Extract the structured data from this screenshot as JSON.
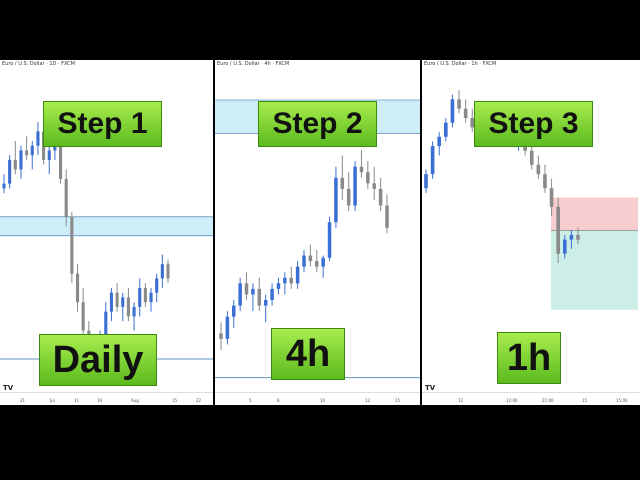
{
  "panels": [
    {
      "header": "Euro / U.S. Dollar · 1D · FXCM",
      "step": "Step 1",
      "timeframe": "Daily",
      "ticks": [
        "21",
        "Jul",
        "11",
        "19",
        "Aug",
        "15",
        "22"
      ],
      "logo": "TV"
    },
    {
      "header": "Euro / U.S. Dollar · 4h · FXCM",
      "step": "Step 2",
      "timeframe": "4h",
      "ticks": [
        "5",
        "8",
        "10",
        "12",
        "15"
      ],
      "logo": ""
    },
    {
      "header": "Euro / U.S. Dollar · 1h · FXCM",
      "step": "Step 3",
      "timeframe": "1h",
      "ticks": [
        "12",
        "12:00",
        "21:00",
        "15",
        "15:00"
      ],
      "logo": "TV"
    }
  ],
  "colors": {
    "bull": "#3b6fd4",
    "bear": "#8a8a8a",
    "zone_blue": "#cdeef8",
    "zone_line": "#2b6fa8",
    "stop_zone": "#f7cdd0",
    "target_zone": "#cdeee6",
    "badge_green": "#7ed63a"
  },
  "chart_data": [
    {
      "type": "candlestick",
      "title": "Euro / U.S. Dollar · 1D · FXCM",
      "x": [
        "21",
        "Jul",
        "11",
        "19",
        "Aug",
        "15",
        "22"
      ],
      "ohlc": [
        [
          1.2,
          1.215,
          1.195,
          1.205
        ],
        [
          1.205,
          1.235,
          1.2,
          1.23
        ],
        [
          1.23,
          1.25,
          1.215,
          1.22
        ],
        [
          1.22,
          1.245,
          1.21,
          1.24
        ],
        [
          1.24,
          1.255,
          1.23,
          1.235
        ],
        [
          1.235,
          1.25,
          1.22,
          1.245
        ],
        [
          1.245,
          1.27,
          1.235,
          1.26
        ],
        [
          1.26,
          1.265,
          1.225,
          1.23
        ],
        [
          1.23,
          1.245,
          1.215,
          1.24
        ],
        [
          1.24,
          1.26,
          1.23,
          1.25
        ],
        [
          1.25,
          1.255,
          1.205,
          1.21
        ],
        [
          1.21,
          1.22,
          1.16,
          1.17
        ],
        [
          1.17,
          1.175,
          1.1,
          1.11
        ],
        [
          1.11,
          1.12,
          1.07,
          1.08
        ],
        [
          1.08,
          1.095,
          1.04,
          1.05
        ],
        [
          1.05,
          1.06,
          1.01,
          1.02
        ],
        [
          1.02,
          1.035,
          1.0,
          1.025
        ],
        [
          1.025,
          1.05,
          1.015,
          1.045
        ],
        [
          1.045,
          1.08,
          1.035,
          1.07
        ],
        [
          1.07,
          1.095,
          1.06,
          1.09
        ],
        [
          1.09,
          1.1,
          1.07,
          1.075
        ],
        [
          1.075,
          1.09,
          1.06,
          1.085
        ],
        [
          1.085,
          1.095,
          1.06,
          1.065
        ],
        [
          1.065,
          1.08,
          1.05,
          1.075
        ],
        [
          1.075,
          1.105,
          1.065,
          1.095
        ],
        [
          1.095,
          1.1,
          1.075,
          1.08
        ],
        [
          1.08,
          1.095,
          1.07,
          1.09
        ],
        [
          1.09,
          1.11,
          1.08,
          1.105
        ],
        [
          1.105,
          1.13,
          1.095,
          1.12
        ],
        [
          1.12,
          1.125,
          1.1,
          1.105
        ]
      ],
      "zones": [
        [
          1.17,
          1.15
        ]
      ],
      "levels": [
        1.02
      ]
    },
    {
      "type": "candlestick",
      "title": "Euro / U.S. Dollar · 4h · FXCM",
      "x": [
        "5",
        "8",
        "10",
        "12",
        "15"
      ],
      "ohlc": [
        [
          1.01,
          1.02,
          0.995,
          1.005
        ],
        [
          1.005,
          1.03,
          1.0,
          1.025
        ],
        [
          1.025,
          1.04,
          1.015,
          1.035
        ],
        [
          1.035,
          1.06,
          1.03,
          1.055
        ],
        [
          1.055,
          1.065,
          1.04,
          1.045
        ],
        [
          1.045,
          1.055,
          1.03,
          1.05
        ],
        [
          1.05,
          1.06,
          1.03,
          1.035
        ],
        [
          1.035,
          1.045,
          1.02,
          1.04
        ],
        [
          1.04,
          1.055,
          1.035,
          1.05
        ],
        [
          1.05,
          1.06,
          1.045,
          1.055
        ],
        [
          1.055,
          1.065,
          1.045,
          1.06
        ],
        [
          1.06,
          1.07,
          1.05,
          1.055
        ],
        [
          1.055,
          1.075,
          1.05,
          1.07
        ],
        [
          1.07,
          1.085,
          1.065,
          1.08
        ],
        [
          1.08,
          1.09,
          1.07,
          1.075
        ],
        [
          1.075,
          1.085,
          1.065,
          1.07
        ],
        [
          1.07,
          1.08,
          1.06,
          1.078
        ],
        [
          1.078,
          1.115,
          1.075,
          1.11
        ],
        [
          1.11,
          1.16,
          1.105,
          1.15
        ],
        [
          1.15,
          1.17,
          1.13,
          1.14
        ],
        [
          1.14,
          1.155,
          1.12,
          1.125
        ],
        [
          1.125,
          1.165,
          1.12,
          1.16
        ],
        [
          1.16,
          1.175,
          1.15,
          1.155
        ],
        [
          1.155,
          1.165,
          1.14,
          1.145
        ],
        [
          1.145,
          1.16,
          1.13,
          1.14
        ],
        [
          1.14,
          1.15,
          1.12,
          1.125
        ],
        [
          1.125,
          1.135,
          1.1,
          1.105
        ]
      ],
      "zones": [
        [
          1.22,
          1.19
        ]
      ],
      "levels": [
        0.97
      ]
    },
    {
      "type": "candlestick",
      "title": "Euro / U.S. Dollar · 1h · FXCM",
      "x": [
        "12",
        "12:00",
        "21:00",
        "15",
        "15:00"
      ],
      "ohlc": [
        [
          1.09,
          1.11,
          1.085,
          1.105
        ],
        [
          1.105,
          1.14,
          1.1,
          1.135
        ],
        [
          1.135,
          1.15,
          1.125,
          1.145
        ],
        [
          1.145,
          1.165,
          1.14,
          1.16
        ],
        [
          1.16,
          1.19,
          1.155,
          1.185
        ],
        [
          1.185,
          1.195,
          1.17,
          1.175
        ],
        [
          1.175,
          1.185,
          1.16,
          1.165
        ],
        [
          1.165,
          1.175,
          1.15,
          1.155
        ],
        [
          1.155,
          1.165,
          1.14,
          1.15
        ],
        [
          1.15,
          1.16,
          1.14,
          1.155
        ],
        [
          1.155,
          1.162,
          1.145,
          1.15
        ],
        [
          1.15,
          1.158,
          1.14,
          1.145
        ],
        [
          1.145,
          1.155,
          1.138,
          1.15
        ],
        [
          1.15,
          1.155,
          1.135,
          1.14
        ],
        [
          1.14,
          1.15,
          1.13,
          1.145
        ],
        [
          1.145,
          1.15,
          1.125,
          1.13
        ],
        [
          1.13,
          1.14,
          1.11,
          1.115
        ],
        [
          1.115,
          1.125,
          1.1,
          1.105
        ],
        [
          1.105,
          1.115,
          1.085,
          1.09
        ],
        [
          1.09,
          1.1,
          1.06,
          1.07
        ],
        [
          1.07,
          1.08,
          1.01,
          1.02
        ],
        [
          1.02,
          1.04,
          1.015,
          1.035
        ],
        [
          1.035,
          1.045,
          1.025,
          1.04
        ],
        [
          1.04,
          1.048,
          1.03,
          1.035
        ]
      ],
      "position": {
        "entry": 1.045,
        "stop": 1.08,
        "target": 0.96
      }
    }
  ]
}
